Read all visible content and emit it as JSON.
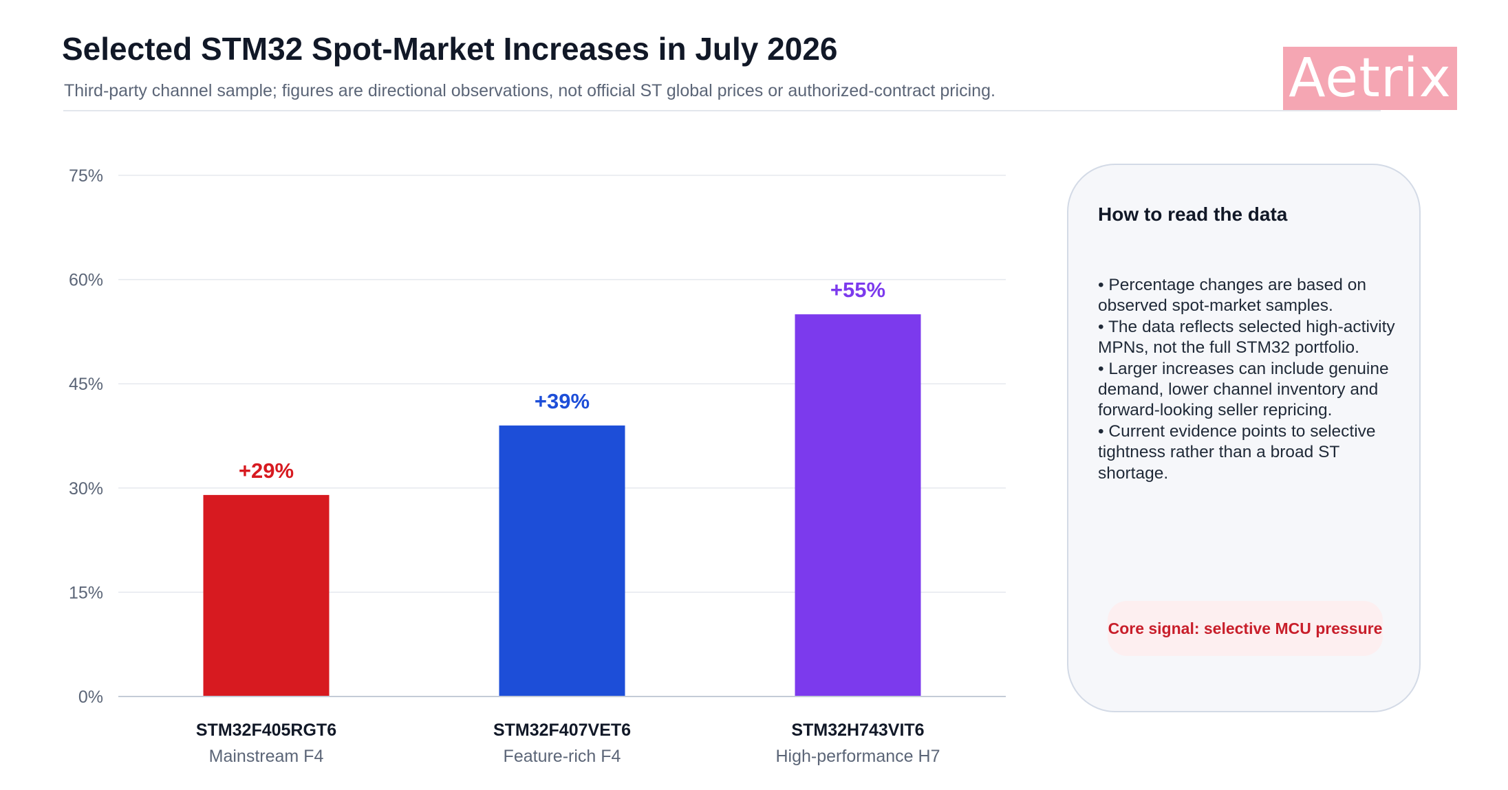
{
  "header": {
    "title": "Selected STM32 Spot-Market Increases in July 2026",
    "subtitle": "Third-party channel sample; figures are directional observations, not official ST global prices or authorized-contract pricing.",
    "logo_text": "Aetrix"
  },
  "chart_data": {
    "type": "bar",
    "title": "Selected STM32 Spot-Market Increases in July 2026",
    "subtitle": "Third-party channel sample; figures are directional observations, not official ST global prices or authorized-contract pricing.",
    "categories": [
      "STM32F405RGT6",
      "STM32F407VET6",
      "STM32H743VIT6"
    ],
    "category_sublabels": [
      "Mainstream F4",
      "Feature-rich F4",
      "High-performance H7"
    ],
    "values": [
      29,
      39,
      55
    ],
    "data_labels": [
      "+29%",
      "+39%",
      "+55%"
    ],
    "bar_colors": [
      "#d71a20",
      "#1d4ed8",
      "#7c3aed"
    ],
    "unit": "%",
    "ylim": [
      0,
      75
    ],
    "yticks": [
      0,
      15,
      30,
      45,
      60,
      75
    ],
    "ytick_labels": [
      "0%",
      "15%",
      "30%",
      "45%",
      "60%",
      "75%"
    ],
    "xlabel": "",
    "ylabel": "",
    "grid": true,
    "legend": "none"
  },
  "panel": {
    "title": "How to read the data",
    "bullets": [
      "• Percentage changes are based on observed spot-market samples.",
      "• The data reflects selected high-activity MPNs, not the full STM32 portfolio.",
      "• Larger increases can include genuine demand, lower channel inventory and forward-looking seller repricing.",
      "• Current evidence points to selective tightness rather than a broad ST shortage."
    ],
    "signal": "Core signal: selective MCU pressure"
  },
  "colors": {
    "text_primary": "#111827",
    "text_muted": "#5b6577",
    "grid": "#e5e8ee",
    "axis": "#c4cbd6",
    "logo_bg": "#f5a6b3",
    "signal_text": "#c81e2a",
    "signal_bg": "#fdeff0",
    "panel_bg": "#f6f7fa",
    "panel_border": "#d3dae6"
  }
}
